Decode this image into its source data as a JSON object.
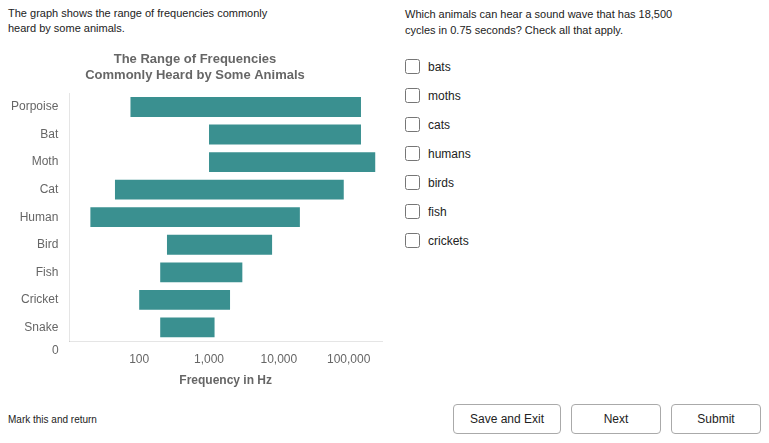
{
  "chart_data": {
    "type": "bar",
    "orientation": "horizontal",
    "log": "x",
    "title": [
      "The Range of Frequencies",
      "Commonly Heard by Some Animals"
    ],
    "xlabel": "Frequency in Hz",
    "categories": [
      "Porpoise",
      "Bat",
      "Moth",
      "Cat",
      "Human",
      "Bird",
      "Fish",
      "Cricket",
      "Snake"
    ],
    "values": [
      [
        75,
        150000
      ],
      [
        1000,
        150000
      ],
      [
        1000,
        240000
      ],
      [
        45,
        85000
      ],
      [
        20,
        20000
      ],
      [
        250,
        8000
      ],
      [
        200,
        3000
      ],
      [
        100,
        2000
      ],
      [
        200,
        1200
      ]
    ],
    "color": "#3a9090",
    "xlim": [
      10,
      300000
    ],
    "xticks": [
      100,
      {
        "value": 1000,
        "label": "1,000"
      },
      {
        "value": 10000,
        "label": "10,000"
      },
      {
        "value": 100000,
        "label": "100,000"
      }
    ],
    "grid": false,
    "annotations": [
      "0"
    ]
  },
  "intro": [
    "The graph shows the range of frequencies commonly",
    "heard by some animals."
  ],
  "question": "Which animals can hear a sound wave that has 18,500\ncycles in 0.75 seconds? Check all that apply.",
  "options": [
    "bats",
    "moths",
    "cats",
    "humans",
    "birds",
    "fish",
    "crickets"
  ],
  "note": "Mark this and return",
  "buttons": [
    "Save and Exit",
    "Next",
    "Submit"
  ]
}
